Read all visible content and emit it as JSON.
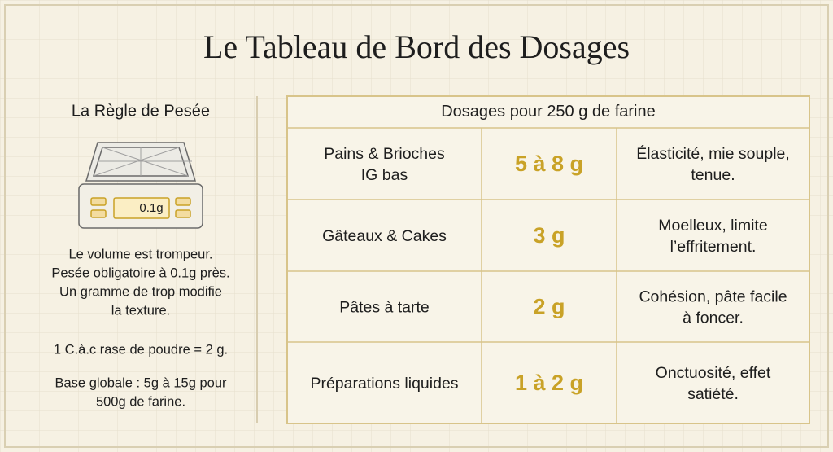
{
  "title": "Le Tableau de Bord des Dosages",
  "left_panel": {
    "heading": "La Règle de Pesée",
    "scale_display": "0.1g",
    "paragraphs": [
      [
        "Le volume est trompeur.",
        "Pesée obligatoire à 0.1g près.",
        "Un gramme de trop modifie",
        "la texture."
      ],
      [
        "1 C.à.c rase de poudre = 2 g."
      ],
      [
        "Base globale : 5g à 15g pour",
        "500g de farine."
      ]
    ]
  },
  "table": {
    "header": "Dosages pour 250 g de farine",
    "rows": [
      {
        "use": [
          "Pains & Brioches",
          "IG bas"
        ],
        "dose": "5 à 8 g",
        "effect": [
          "Élasticité, mie souple,",
          "tenue."
        ]
      },
      {
        "use": [
          "Gâteaux & Cakes"
        ],
        "dose": "3 g",
        "effect": [
          "Moelleux, limite",
          "l’effritement."
        ]
      },
      {
        "use": [
          "Pâtes à tarte"
        ],
        "dose": "2 g",
        "effect": [
          "Cohésion, pâte facile",
          "à foncer."
        ]
      },
      {
        "use": [
          "Préparations liquides"
        ],
        "dose": "1 à 2 g",
        "effect": [
          "Onctuosité, effet",
          "satiété."
        ]
      }
    ]
  }
}
